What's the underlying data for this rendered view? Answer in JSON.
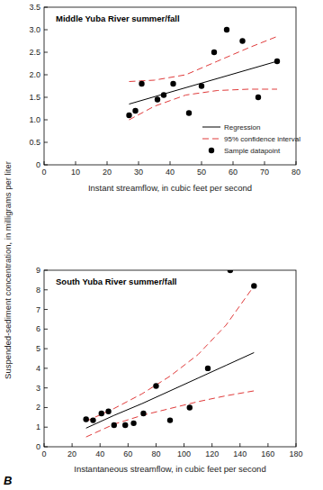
{
  "y_label": "Suspended-sediment concentration, in milligrams per liter",
  "panel_label": "B",
  "chart_data": [
    {
      "type": "scatter",
      "title": "Middle Yuba River summer/fall",
      "x_label": "Instant streamflow, in cubic feet per second",
      "xlim": [
        0,
        80
      ],
      "xticks": [
        0,
        10,
        20,
        30,
        40,
        50,
        60,
        70,
        80
      ],
      "ylim": [
        0,
        3.5
      ],
      "yticks": [
        0,
        0.5,
        {
          "value": 1,
          "label": "1.0"
        },
        1.5,
        {
          "value": 2,
          "label": "2.0"
        },
        2.5,
        {
          "value": 3,
          "label": "3.0"
        },
        3.5
      ],
      "legend": "lower right",
      "series": [
        {
          "name": "Regression",
          "type": "line",
          "color": "#000000",
          "line_style": "solid",
          "x": [
            27,
            74
          ],
          "values": [
            1.35,
            2.3
          ]
        },
        {
          "name": "95% confidence interval",
          "type": "line",
          "color": "#e03a3a",
          "line_style": "dashed",
          "x": [
            27,
            35,
            45,
            55,
            65,
            74
          ],
          "values": [
            1.85,
            1.88,
            2.0,
            2.3,
            2.6,
            2.85
          ],
          "lower": [
            1.0,
            1.3,
            1.55,
            1.65,
            1.68,
            1.68
          ]
        },
        {
          "name": "Sample datapoint",
          "type": "scatter",
          "color": "#000000",
          "marker": "circle",
          "x": [
            27,
            29,
            31,
            36,
            38,
            41,
            46,
            50,
            54,
            58,
            63,
            68,
            74
          ],
          "values": [
            1.1,
            1.2,
            1.8,
            1.45,
            1.55,
            1.8,
            1.15,
            1.75,
            2.5,
            3.0,
            2.75,
            1.5,
            2.3
          ]
        }
      ]
    },
    {
      "type": "scatter",
      "title": "South Yuba River summer/fall",
      "x_label": "Instantaneous streamflow, in cubic feet per second",
      "xlim": [
        0,
        180
      ],
      "xticks": [
        0,
        20,
        40,
        60,
        80,
        100,
        120,
        140,
        160,
        180
      ],
      "ylim": [
        0,
        9
      ],
      "yticks": [
        0,
        1,
        2,
        3,
        4,
        5,
        6,
        7,
        8,
        9
      ],
      "series": [
        {
          "type": "line",
          "color": "#000000",
          "line_style": "solid",
          "x": [
            30,
            50,
            70,
            90,
            110,
            130,
            150
          ],
          "values": [
            0.95,
            1.6,
            2.2,
            2.85,
            3.5,
            4.15,
            4.8
          ]
        },
        {
          "type": "line",
          "color": "#e03a3a",
          "line_style": "dashed",
          "x": [
            30,
            50,
            70,
            90,
            110,
            130,
            150
          ],
          "values": [
            1.3,
            1.95,
            2.7,
            3.6,
            4.7,
            6.2,
            8.2
          ],
          "lower": [
            0.5,
            1.15,
            1.6,
            1.95,
            2.3,
            2.6,
            2.85
          ]
        },
        {
          "type": "scatter",
          "color": "#000000",
          "marker": "circle",
          "x": [
            30,
            35,
            41,
            46,
            50,
            58,
            64,
            71,
            80,
            90,
            104,
            117,
            133,
            150
          ],
          "values": [
            1.4,
            1.35,
            1.7,
            1.8,
            1.1,
            1.1,
            1.2,
            1.7,
            3.1,
            1.35,
            2.0,
            4.0,
            9.0,
            8.2
          ]
        }
      ]
    }
  ]
}
